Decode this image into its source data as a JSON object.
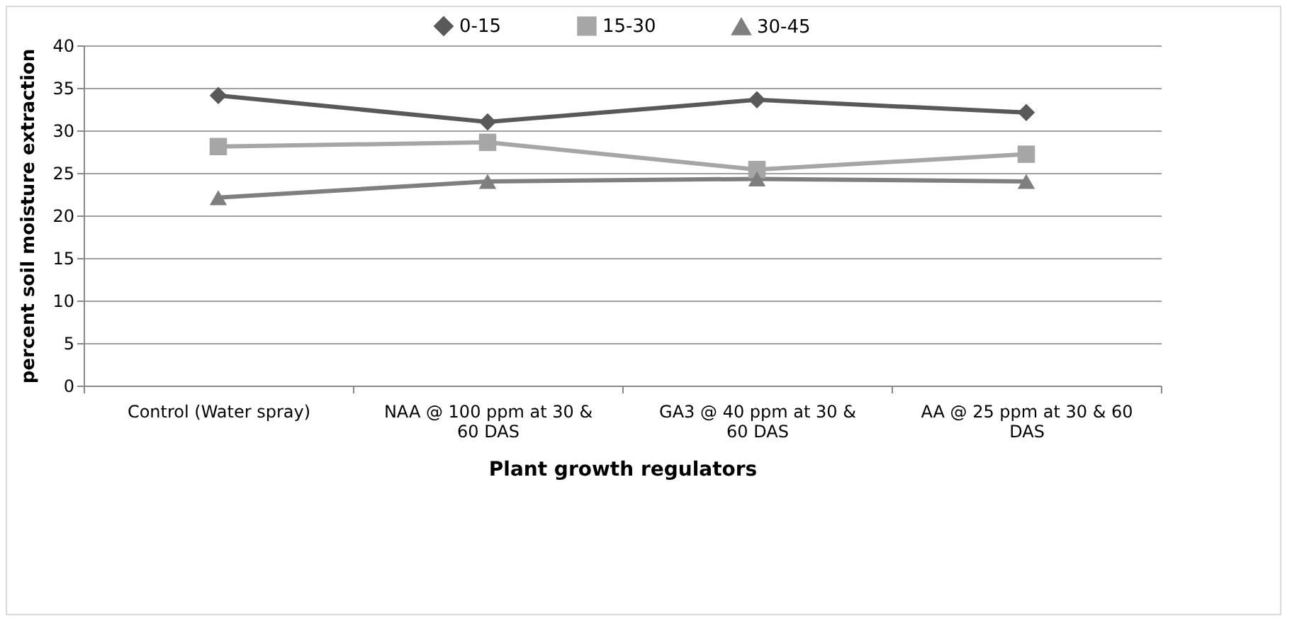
{
  "chart_data": {
    "type": "line",
    "xlabel": "Plant growth regulators",
    "ylabel": "percent soil moisture extraction",
    "categories": [
      "Control (Water spray)",
      "NAA @ 100 ppm at 30 & 60 DAS",
      "GA3 @ 40 ppm at 30 & 60 DAS",
      "AA @ 25 ppm at 30 & 60 DAS"
    ],
    "series": [
      {
        "name": "0-15",
        "color": "#595959",
        "marker": "diamond",
        "values": [
          34.1,
          31.0,
          33.6,
          32.1
        ]
      },
      {
        "name": "15-30",
        "color": "#a6a6a6",
        "marker": "square",
        "values": [
          28.1,
          28.6,
          25.4,
          27.2
        ]
      },
      {
        "name": "30-45",
        "color": "#7f7f7f",
        "marker": "triangle",
        "values": [
          22.1,
          24.0,
          24.3,
          24.0
        ]
      }
    ],
    "ylim": [
      0,
      40
    ],
    "yticks": [
      0,
      5,
      10,
      15,
      20,
      25,
      30,
      35,
      40
    ],
    "grid": "y",
    "legend": "top",
    "line_style": "solid"
  }
}
